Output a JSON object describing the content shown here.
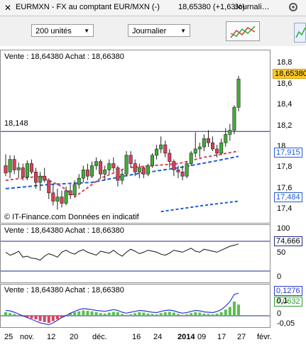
{
  "header": {
    "instrument": "EURMXN - FX au comptant EUR/MXN (-)",
    "quote": "18,65380 (+1,63%)",
    "window_title": "Journali…"
  },
  "toolbar": {
    "units_select": "200 unités",
    "period_select": "Journalier"
  },
  "main_chart": {
    "label": "Vente : 18,64380 Achat : 18,66380",
    "hline_label": "18,148",
    "attribution": "© IT-Finance.com  Données en indicatif",
    "y_ticks": [
      "18,8",
      "18,6",
      "18,4",
      "18,2",
      "18",
      "17,8",
      "17,6",
      "17,4"
    ],
    "price_badge": "18,65380",
    "ma_badge_1": "17,915",
    "ma_badge_2": "17,484",
    "colors": {
      "up": "#3fae35",
      "down": "#d9415b",
      "hline": "#1b2a8a",
      "ma": "#1e5bd6"
    }
  },
  "osc_chart": {
    "label": "Vente : 18,64380 Achat : 18,66380",
    "y_ticks": [
      "100",
      "50",
      "0"
    ],
    "value_badge": "74,666"
  },
  "macd_chart": {
    "label": "Vente : 18,64380 Achat : 18,66380",
    "y_ticks": [
      "0,1",
      "0",
      "-0,05"
    ],
    "badge_1": "0,1276",
    "badge_2": "0,0632"
  },
  "x_axis": {
    "labels": [
      "25",
      "nov.",
      "12",
      "20",
      "déc.",
      "16",
      "24",
      "2014",
      "09",
      "17",
      "27",
      "févr."
    ]
  },
  "chart_data": {
    "type": "candlestick",
    "ylim": [
      17.3,
      18.85
    ],
    "hline": 18.148,
    "candles": [
      [
        17.82,
        17.93,
        17.72,
        17.75
      ],
      [
        17.76,
        17.92,
        17.7,
        17.88
      ],
      [
        17.88,
        17.92,
        17.74,
        17.78
      ],
      [
        17.78,
        17.85,
        17.7,
        17.8
      ],
      [
        17.8,
        17.84,
        17.68,
        17.71
      ],
      [
        17.71,
        17.87,
        17.68,
        17.84
      ],
      [
        17.84,
        17.88,
        17.74,
        17.76
      ],
      [
        17.76,
        17.8,
        17.6,
        17.66
      ],
      [
        17.66,
        17.76,
        17.58,
        17.72
      ],
      [
        17.72,
        17.8,
        17.66,
        17.68
      ],
      [
        17.68,
        17.7,
        17.5,
        17.56
      ],
      [
        17.56,
        17.64,
        17.44,
        17.48
      ],
      [
        17.48,
        17.6,
        17.4,
        17.52
      ],
      [
        17.52,
        17.58,
        17.42,
        17.46
      ],
      [
        17.46,
        17.62,
        17.44,
        17.58
      ],
      [
        17.58,
        17.64,
        17.5,
        17.54
      ],
      [
        17.54,
        17.68,
        17.52,
        17.64
      ],
      [
        17.64,
        17.74,
        17.6,
        17.7
      ],
      [
        17.7,
        17.82,
        17.66,
        17.78
      ],
      [
        17.78,
        17.84,
        17.68,
        17.72
      ],
      [
        17.72,
        17.86,
        17.7,
        17.82
      ],
      [
        17.82,
        17.9,
        17.78,
        17.86
      ],
      [
        17.86,
        17.88,
        17.7,
        17.74
      ],
      [
        17.74,
        17.82,
        17.68,
        17.78
      ],
      [
        17.78,
        17.88,
        17.74,
        17.84
      ],
      [
        17.84,
        17.9,
        17.76,
        17.8
      ],
      [
        17.8,
        17.82,
        17.62,
        17.68
      ],
      [
        17.68,
        17.78,
        17.64,
        17.74
      ],
      [
        17.74,
        17.96,
        17.72,
        17.92
      ],
      [
        17.92,
        17.96,
        17.8,
        17.84
      ],
      [
        17.84,
        17.88,
        17.72,
        17.76
      ],
      [
        17.76,
        17.84,
        17.7,
        17.8
      ],
      [
        17.8,
        17.82,
        17.7,
        17.74
      ],
      [
        17.74,
        17.84,
        17.72,
        17.82
      ],
      [
        17.82,
        17.94,
        17.8,
        17.92
      ],
      [
        17.92,
        18.02,
        17.88,
        17.98
      ],
      [
        17.98,
        18.1,
        17.94,
        18.02
      ],
      [
        18.02,
        18.06,
        17.9,
        17.94
      ],
      [
        17.94,
        17.98,
        17.8,
        17.86
      ],
      [
        17.86,
        17.88,
        17.72,
        17.78
      ],
      [
        17.78,
        17.82,
        17.7,
        17.76
      ],
      [
        17.76,
        17.82,
        17.68,
        17.72
      ],
      [
        17.72,
        17.86,
        17.7,
        17.84
      ],
      [
        17.84,
        17.96,
        17.82,
        17.94
      ],
      [
        17.94,
        18.14,
        17.9,
        17.98
      ],
      [
        17.98,
        18.04,
        17.9,
        18.0
      ],
      [
        18.0,
        18.12,
        17.96,
        18.08
      ],
      [
        18.08,
        18.16,
        18.0,
        18.04
      ],
      [
        18.04,
        18.1,
        17.96,
        17.98
      ],
      [
        17.98,
        18.02,
        17.9,
        17.94
      ],
      [
        17.94,
        18.08,
        17.92,
        18.04
      ],
      [
        18.04,
        18.18,
        18.0,
        18.12
      ],
      [
        18.12,
        18.22,
        18.06,
        18.16
      ],
      [
        18.16,
        18.4,
        18.12,
        18.38
      ],
      [
        18.38,
        18.68,
        18.34,
        18.65
      ]
    ],
    "ma_short": [
      [
        0,
        17.68
      ],
      [
        8,
        17.72
      ],
      [
        13,
        17.62
      ],
      [
        16,
        17.52
      ],
      [
        22,
        17.7
      ],
      [
        28,
        17.8
      ],
      [
        34,
        17.82
      ],
      [
        40,
        17.84
      ],
      [
        46,
        17.9
      ],
      [
        54,
        17.96
      ]
    ],
    "ma_long": [
      [
        0,
        17.6
      ],
      [
        10,
        17.64
      ],
      [
        20,
        17.66
      ],
      [
        30,
        17.74
      ],
      [
        40,
        17.8
      ],
      [
        48,
        17.86
      ],
      [
        54,
        17.91
      ]
    ],
    "ma_lower": [
      [
        36,
        17.38
      ],
      [
        46,
        17.44
      ],
      [
        54,
        17.48
      ]
    ],
    "oscillator": [
      58,
      52,
      55,
      60,
      48,
      50,
      46,
      45,
      42,
      50,
      55,
      52,
      48,
      58,
      62,
      57,
      54,
      60,
      63,
      58,
      55,
      52,
      60,
      58,
      56,
      62,
      55,
      50,
      58,
      64,
      60,
      55,
      58,
      62,
      60,
      58,
      54,
      52,
      56,
      62,
      60,
      58,
      62,
      66,
      60,
      58,
      64,
      62,
      60,
      58,
      62,
      66,
      70,
      72,
      74.666
    ],
    "macd_hist": [
      0.02,
      0.015,
      0.01,
      0.005,
      -0.005,
      -0.01,
      -0.015,
      -0.02,
      -0.03,
      -0.035,
      -0.04,
      -0.03,
      -0.02,
      -0.01,
      0.005,
      0.015,
      0.02,
      0.025,
      0.03,
      0.028,
      0.025,
      0.02,
      0.015,
      0.012,
      0.018,
      0.022,
      0.02,
      0.01,
      0.005,
      0.008,
      0.015,
      0.02,
      0.018,
      0.012,
      0.01,
      0.008,
      0.015,
      0.02,
      0.022,
      0.018,
      0.01,
      0.005,
      0.008,
      0.015,
      0.02,
      0.018,
      0.012,
      0.01,
      0.008,
      0.012,
      0.02,
      0.035,
      0.05,
      0.08,
      0.0632
    ],
    "macd_line": [
      0.03,
      0.028,
      0.02,
      0.01,
      0.0,
      -0.01,
      -0.02,
      -0.03,
      -0.04,
      -0.045,
      -0.05,
      -0.04,
      -0.025,
      -0.01,
      0.0,
      0.015,
      0.025,
      0.035,
      0.04,
      0.038,
      0.035,
      0.03,
      0.028,
      0.025,
      0.03,
      0.035,
      0.03,
      0.02,
      0.015,
      0.02,
      0.025,
      0.03,
      0.028,
      0.024,
      0.02,
      0.018,
      0.025,
      0.03,
      0.032,
      0.028,
      0.02,
      0.015,
      0.018,
      0.025,
      0.03,
      0.028,
      0.022,
      0.02,
      0.018,
      0.024,
      0.035,
      0.055,
      0.08,
      0.12,
      0.1276
    ]
  }
}
